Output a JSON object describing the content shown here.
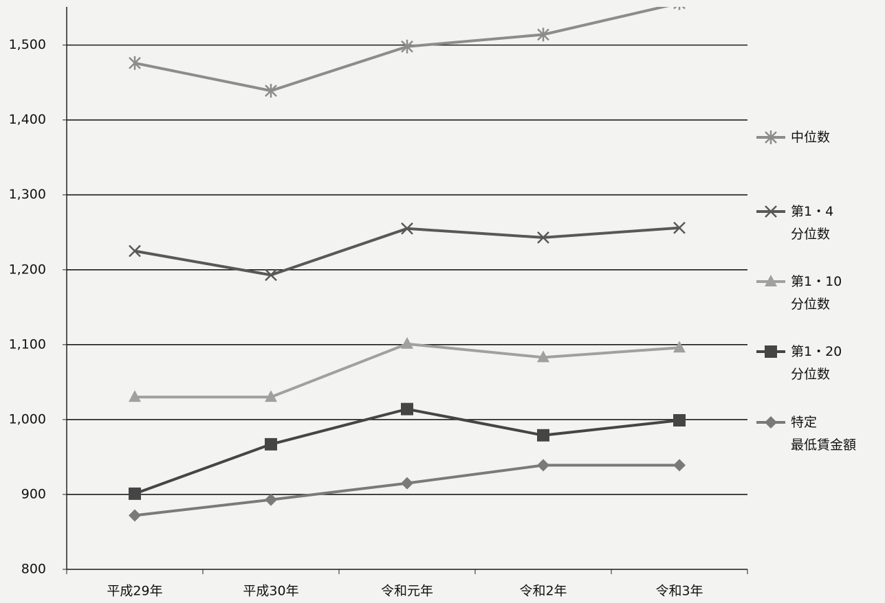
{
  "chart_data": {
    "type": "line",
    "categories": [
      "平成29年",
      "平成30年",
      "令和元年",
      "令和2年",
      "令和3年"
    ],
    "series": [
      {
        "name": "中位数",
        "color": "#8c8c8c",
        "marker": "asterisk",
        "values": [
          1476,
          1439,
          1498,
          1514,
          1556
        ]
      },
      {
        "name": "第1・4\n分位数",
        "color": "#585858",
        "marker": "x",
        "values": [
          1225,
          1193,
          1255,
          1243,
          1256
        ]
      },
      {
        "name": "第1・10\n分位数",
        "color": "#a0a0a0",
        "marker": "triangle",
        "values": [
          1030,
          1030,
          1101,
          1083,
          1096
        ]
      },
      {
        "name": "第1・20\n分位数",
        "color": "#454545",
        "marker": "square",
        "values": [
          901,
          967,
          1014,
          979,
          999
        ]
      },
      {
        "name": "特定\n最低賃金額",
        "color": "#7a7a7a",
        "marker": "diamond",
        "values": [
          872,
          893,
          915,
          939,
          939
        ]
      }
    ],
    "ylim": [
      800,
      1551
    ],
    "yticks": [
      800,
      900,
      {
        "value": 1000,
        "label": "1,000"
      },
      {
        "value": 1100,
        "label": "1,100"
      },
      {
        "value": 1200,
        "label": "1,200"
      },
      {
        "value": 1300,
        "label": "1,300"
      },
      {
        "value": 1400,
        "label": "1,400"
      },
      {
        "value": 1500,
        "label": "1,500"
      }
    ],
    "grid": true,
    "legend": "right"
  }
}
